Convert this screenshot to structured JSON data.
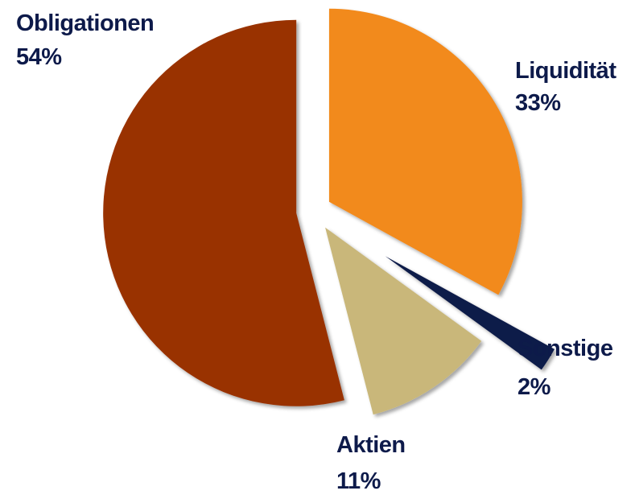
{
  "chart_data": {
    "type": "pie",
    "categories": [
      "Liquidität",
      "Sonstige",
      "Aktien",
      "Obligationen"
    ],
    "values": [
      33,
      2,
      11,
      54
    ],
    "value_labels": [
      "33%",
      "2%",
      "11%",
      "54%"
    ],
    "colors": [
      "#f28a1e",
      "#0d1a4a",
      "#c9b77a",
      "#993300"
    ]
  }
}
